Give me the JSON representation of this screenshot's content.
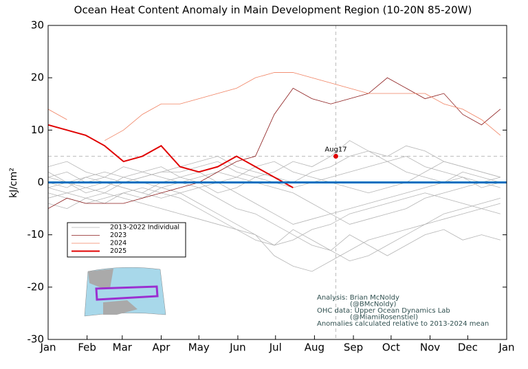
{
  "chart_data": {
    "type": "line",
    "title": "Ocean Heat Content Anomaly in Main Development Region (10-20N 85-20W)",
    "y_label": "kJ/cm²",
    "xlim": [
      0,
      365
    ],
    "ylim": [
      -30,
      30
    ],
    "xticks": [
      {
        "value": 0,
        "label": "Jan"
      },
      {
        "value": 31,
        "label": "Feb"
      },
      {
        "value": 59,
        "label": "Mar"
      },
      {
        "value": 90,
        "label": "Apr"
      },
      {
        "value": 120,
        "label": "May"
      },
      {
        "value": 151,
        "label": "Jun"
      },
      {
        "value": 181,
        "label": "Jul"
      },
      {
        "value": 212,
        "label": "Aug"
      },
      {
        "value": 243,
        "label": "Sep"
      },
      {
        "value": 273,
        "label": "Oct"
      },
      {
        "value": 304,
        "label": "Nov"
      },
      {
        "value": 334,
        "label": "Dec"
      },
      {
        "value": 365,
        "label": "Jan"
      }
    ],
    "yticks": [
      30,
      20,
      10,
      0,
      -10,
      -20,
      -30
    ],
    "x": [
      0,
      15,
      30,
      45,
      60,
      75,
      90,
      105,
      120,
      135,
      150,
      165,
      180,
      195,
      210,
      225,
      240,
      255,
      270,
      285,
      300,
      315,
      330,
      345,
      360
    ],
    "series": [
      {
        "name": "2013-2022 Individual",
        "color": "#b4b4b4",
        "lines": [
          [
            2,
            0,
            -2,
            -1,
            1,
            2,
            3,
            1,
            0,
            -2,
            -1,
            1,
            2,
            4,
            3,
            5,
            8,
            6,
            4,
            2,
            1,
            0,
            2,
            1,
            0
          ],
          [
            -1,
            -2,
            -3,
            -4,
            -2,
            -3,
            -1,
            -2,
            -4,
            -6,
            -8,
            -10,
            -12,
            -9,
            -11,
            -13,
            -10,
            -12,
            -14,
            -12,
            -10,
            -9,
            -11,
            -10,
            -11
          ],
          [
            1,
            2,
            0,
            1,
            3,
            2,
            1,
            0,
            -1,
            -3,
            -5,
            -6,
            -8,
            -10,
            -12,
            -13,
            -15,
            -14,
            -12,
            -10,
            -8,
            -6,
            -5,
            -4,
            -3
          ],
          [
            -3,
            -2,
            -1,
            0,
            -1,
            -2,
            0,
            1,
            2,
            0,
            -2,
            -4,
            -6,
            -8,
            -7,
            -6,
            -5,
            -4,
            -3,
            -2,
            -1,
            0,
            1,
            -1,
            0
          ],
          [
            3,
            4,
            2,
            1,
            0,
            1,
            2,
            3,
            4,
            5,
            3,
            2,
            1,
            0,
            2,
            3,
            5,
            6,
            5,
            7,
            6,
            4,
            3,
            2,
            1
          ],
          [
            -2,
            -3,
            -4,
            -3,
            -2,
            -1,
            -2,
            -3,
            -5,
            -7,
            -9,
            -11,
            -12,
            -11,
            -9,
            -8,
            -6,
            -5,
            -4,
            -3,
            -2,
            -3,
            -4,
            -5,
            -6
          ],
          [
            0,
            -1,
            1,
            2,
            1,
            0,
            -1,
            0,
            1,
            2,
            1,
            0,
            -1,
            -2,
            -4,
            -6,
            -8,
            -7,
            -6,
            -5,
            -3,
            -2,
            -1,
            0,
            1
          ],
          [
            -4,
            -5,
            -3,
            -2,
            -3,
            -4,
            -5,
            -6,
            -7,
            -8,
            -9,
            -10,
            -14,
            -16,
            -17,
            -15,
            -13,
            -11,
            -10,
            -9,
            -8,
            -7,
            -6,
            -5,
            -4
          ],
          [
            1,
            0,
            -1,
            -2,
            0,
            1,
            2,
            2,
            3,
            4,
            2,
            1,
            0,
            -1,
            0,
            1,
            2,
            3,
            4,
            5,
            3,
            2,
            1,
            0,
            -1
          ],
          [
            -1,
            0,
            1,
            0,
            -1,
            -2,
            -3,
            -2,
            -1,
            0,
            1,
            3,
            4,
            2,
            1,
            0,
            -1,
            -2,
            -1,
            0,
            2,
            4,
            3,
            2,
            1
          ]
        ]
      },
      {
        "name": "2023",
        "color": "#8b1a1a",
        "width": 0.8,
        "values": [
          -5,
          -3,
          -4,
          -4,
          -4,
          -3,
          -2,
          -1,
          0,
          2,
          4,
          5,
          13,
          18,
          16,
          15,
          16,
          17,
          20,
          18,
          16,
          17,
          13,
          11,
          14
        ]
      },
      {
        "name": "2024",
        "color": "#f08060",
        "width": 0.8,
        "values": [
          14,
          12,
          null,
          8,
          10,
          13,
          15,
          15,
          16,
          17,
          18,
          20,
          21,
          21,
          20,
          19,
          18,
          17,
          17,
          17,
          17,
          15,
          14,
          12,
          9
        ]
      },
      {
        "name": "2025",
        "color": "#e00000",
        "width": 2,
        "values": [
          11,
          10,
          9,
          7,
          4,
          5,
          7,
          3,
          2,
          3,
          5,
          3,
          1,
          -1,
          null,
          5,
          null,
          null,
          null,
          null,
          null,
          null,
          null,
          null,
          null
        ]
      }
    ],
    "annotation": {
      "text": "Aug17",
      "x": 229,
      "y": 5
    },
    "reference_line": {
      "value": 0,
      "color": "#0070c0"
    },
    "credits": [
      "Analysis: Brian McNoldy",
      "(@BMcNoldy)",
      "OHC data: Upper Ocean Dynamics Lab",
      "(@MiamiRosenstiel)",
      "Anomalies calculated relative to 2013-2024 mean"
    ]
  }
}
